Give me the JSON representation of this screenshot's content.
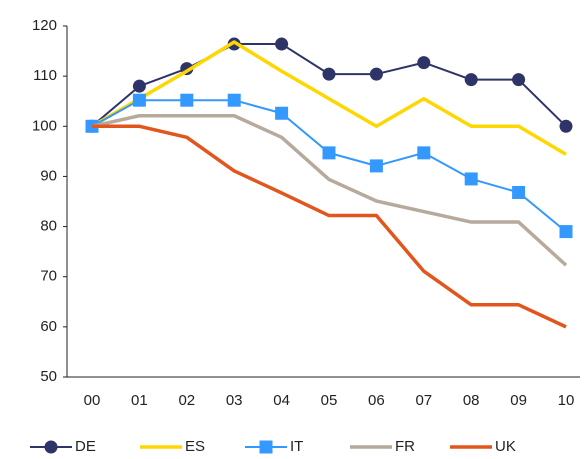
{
  "chart_data": {
    "type": "line",
    "categories": [
      "00",
      "01",
      "02",
      "03",
      "04",
      "05",
      "06",
      "07",
      "08",
      "09",
      "10"
    ],
    "ylim": [
      50,
      120
    ],
    "yticks": [
      50,
      60,
      70,
      80,
      90,
      100,
      110,
      120
    ],
    "legend": "bottom",
    "series": [
      {
        "name": "DE",
        "color": "#2e3468",
        "marker": "circle",
        "values": [
          100,
          108,
          111.5,
          116.4,
          116.4,
          110.4,
          110.4,
          112.7,
          109.3,
          109.3,
          100
        ]
      },
      {
        "name": "ES",
        "color": "#ffd700",
        "values": [
          100,
          105.5,
          111,
          116.8,
          111,
          105.5,
          100,
          105.5,
          100,
          100,
          94.4
        ]
      },
      {
        "name": "IT",
        "color": "#3399ff",
        "marker": "square",
        "values": [
          100,
          105.2,
          105.2,
          105.2,
          102.6,
          94.7,
          92.1,
          94.7,
          89.5,
          86.8,
          79
        ]
      },
      {
        "name": "FR",
        "color": "#b5aa9c",
        "values": [
          100,
          102.1,
          102.1,
          102.1,
          97.8,
          89.4,
          85.1,
          83,
          80.9,
          80.9,
          72.3
        ]
      },
      {
        "name": "UK",
        "color": "#e2551c",
        "values": [
          100,
          100,
          97.8,
          91.1,
          86.7,
          82.2,
          82.2,
          71.1,
          64.4,
          64.4,
          60
        ]
      }
    ]
  }
}
